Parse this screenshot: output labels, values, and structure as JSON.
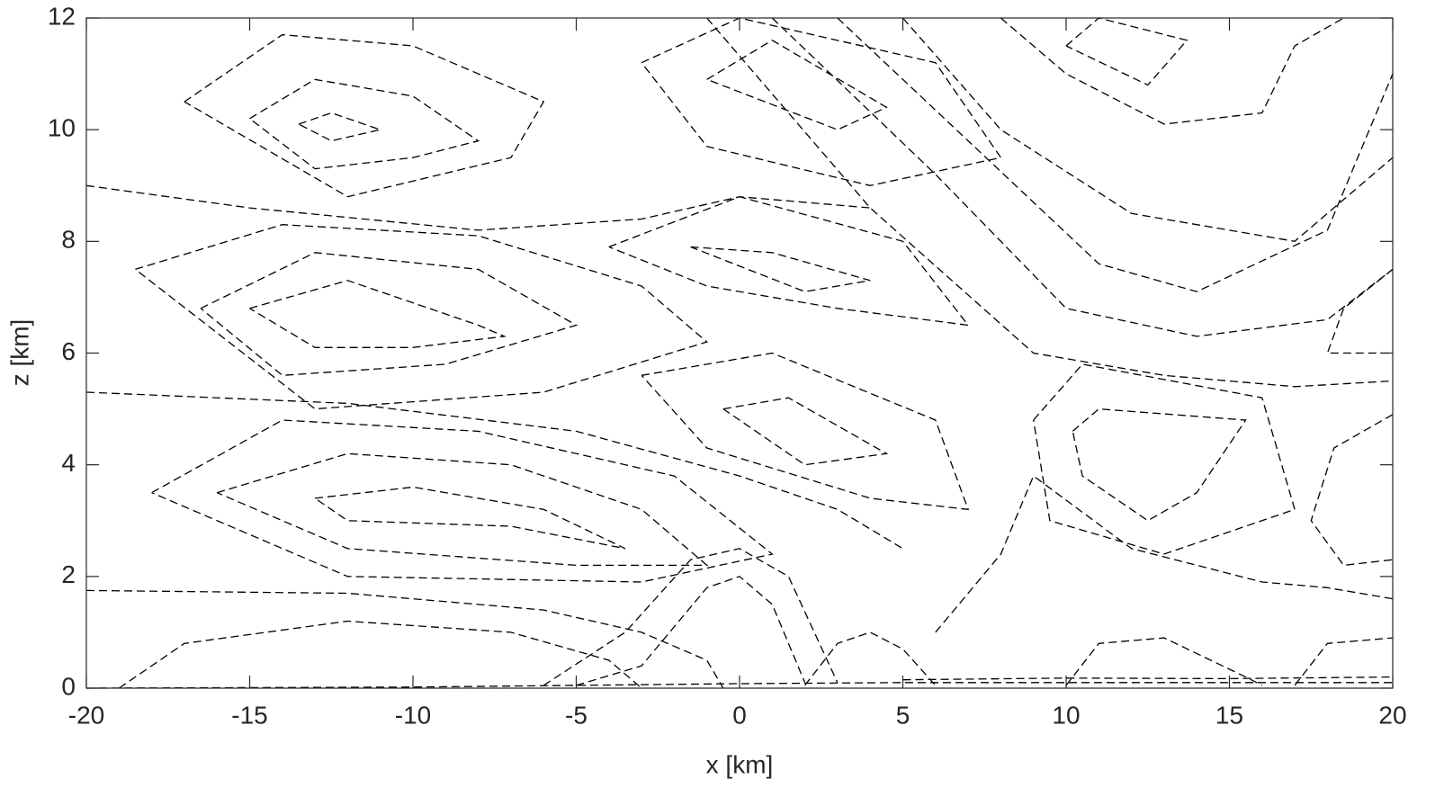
{
  "chart_data": {
    "type": "contour",
    "xlabel": "x [km]",
    "ylabel": "z [km]",
    "xlim": [
      -20,
      20
    ],
    "ylim": [
      0,
      12
    ],
    "xticks": [
      -20,
      -15,
      -10,
      -5,
      0,
      5,
      10,
      15,
      20
    ],
    "yticks": [
      0,
      2,
      4,
      6,
      8,
      10,
      12
    ],
    "line_style": "dashed",
    "color": "#000000",
    "series": [
      {
        "x": [
          -13.5,
          -12.5,
          -11,
          -12.5,
          -13.5
        ],
        "values": [
          10.1,
          10.3,
          10,
          9.8,
          10.1
        ]
      },
      {
        "x": [
          -15,
          -13,
          -10,
          -8,
          -10,
          -13,
          -15
        ],
        "values": [
          10.2,
          10.9,
          10.6,
          9.8,
          9.5,
          9.3,
          10.2
        ]
      },
      {
        "x": [
          -17,
          -14,
          -10,
          -6,
          -7,
          -12,
          -17
        ],
        "values": [
          10.5,
          11.7,
          11.5,
          10.5,
          9.5,
          8.8,
          10.5
        ]
      },
      {
        "x": [
          -15,
          -12,
          -8,
          -7.2,
          -10,
          -13,
          -15
        ],
        "values": [
          6.8,
          7.3,
          6.5,
          6.3,
          6.1,
          6.1,
          6.8
        ]
      },
      {
        "x": [
          -16.5,
          -13,
          -8,
          -5,
          -9,
          -14,
          -16.5
        ],
        "values": [
          6.8,
          7.8,
          7.5,
          6.5,
          5.8,
          5.6,
          6.8
        ]
      },
      {
        "x": [
          -18.5,
          -14,
          -8,
          -3,
          -1,
          -6,
          -13,
          -18.5
        ],
        "values": [
          7.5,
          8.3,
          8.1,
          7.2,
          6.2,
          5.3,
          5.0,
          7.5
        ]
      },
      {
        "x": [
          -13,
          -10,
          -6,
          -3.5,
          -7,
          -12,
          -13
        ],
        "values": [
          3.4,
          3.6,
          3.2,
          2.5,
          2.9,
          3.0,
          3.4
        ]
      },
      {
        "x": [
          -16,
          -12,
          -7,
          -3,
          -1,
          -5,
          -12,
          -16
        ],
        "values": [
          3.5,
          4.2,
          4.0,
          3.2,
          2.2,
          2.2,
          2.5,
          3.5
        ]
      },
      {
        "x": [
          -18,
          -14,
          -8,
          -2,
          1,
          -3,
          -12,
          -18
        ],
        "values": [
          3.5,
          4.8,
          4.6,
          3.8,
          2.4,
          1.9,
          2.0,
          3.5
        ]
      },
      {
        "x": [
          -20,
          -15,
          -8,
          -3,
          0,
          4
        ],
        "values": [
          9,
          8.6,
          8.2,
          8.4,
          8.8,
          8.6
        ]
      },
      {
        "x": [
          -20,
          -12,
          -5,
          0,
          3,
          5
        ],
        "values": [
          5.3,
          5.1,
          4.6,
          3.8,
          3.2,
          2.5
        ]
      },
      {
        "x": [
          -20,
          -12,
          -6,
          -3,
          -1,
          -0.5
        ],
        "values": [
          1.75,
          1.7,
          1.4,
          1.0,
          0.5,
          0
        ]
      },
      {
        "x": [
          -19,
          -17,
          -12,
          -7,
          -4,
          -3
        ],
        "values": [
          0,
          0.8,
          1.2,
          1.0,
          0.5,
          0
        ]
      },
      {
        "x": [
          -1.5,
          1,
          4,
          2,
          -1.5
        ],
        "values": [
          7.9,
          7.8,
          7.3,
          7.1,
          7.9
        ]
      },
      {
        "x": [
          -4,
          0,
          5,
          7,
          3,
          -1,
          -4
        ],
        "values": [
          7.9,
          8.8,
          8.0,
          6.5,
          6.8,
          7.2,
          7.9
        ]
      },
      {
        "x": [
          -0.5,
          1.5,
          4.5,
          2,
          -0.5
        ],
        "values": [
          5.0,
          5.2,
          4.2,
          4.0,
          5.0
        ]
      },
      {
        "x": [
          -3,
          1,
          6,
          7,
          4,
          -1,
          -3
        ],
        "values": [
          5.6,
          6.0,
          4.8,
          3.2,
          3.4,
          4.3,
          5.6
        ]
      },
      {
        "x": [
          -1,
          1,
          4.5,
          3,
          -1
        ],
        "values": [
          10.9,
          11.6,
          10.4,
          10.0,
          10.9
        ]
      },
      {
        "x": [
          -3,
          0,
          6,
          8,
          4,
          -1,
          -3
        ],
        "values": [
          11.2,
          12,
          11.2,
          9.5,
          9.0,
          9.7,
          11.2
        ]
      },
      {
        "x": [
          10,
          11,
          13.7,
          12.5,
          10
        ],
        "values": [
          11.5,
          12,
          11.6,
          10.8,
          11.5
        ]
      },
      {
        "x": [
          8,
          10,
          13,
          16,
          17,
          18.5
        ],
        "values": [
          12,
          11,
          10.1,
          10.3,
          11.5,
          12
        ]
      },
      {
        "x": [
          10.2,
          11,
          15.5,
          14,
          12.5,
          10.5,
          10.2
        ],
        "values": [
          4.6,
          5,
          4.8,
          3.5,
          3,
          3.8,
          4.6
        ]
      },
      {
        "x": [
          9,
          10.5,
          16,
          17,
          13,
          9.5,
          9
        ],
        "values": [
          4.8,
          5.8,
          5.2,
          3.2,
          2.4,
          3.0,
          4.8
        ]
      },
      {
        "x": [
          20,
          18.5,
          18,
          20
        ],
        "values": [
          7.5,
          6.8,
          6.0,
          6.0
        ]
      },
      {
        "x": [
          20,
          18.2,
          17.5,
          18.5,
          20
        ],
        "values": [
          4.9,
          4.3,
          3.0,
          2.2,
          2.3
        ]
      },
      {
        "x": [
          5,
          8,
          12,
          17,
          20
        ],
        "values": [
          12,
          10,
          8.5,
          8,
          9.5
        ]
      },
      {
        "x": [
          3,
          7,
          11,
          14,
          18,
          20
        ],
        "values": [
          12,
          9.8,
          7.6,
          7.1,
          8.2,
          11
        ]
      },
      {
        "x": [
          1,
          6,
          10,
          14,
          18,
          20
        ],
        "values": [
          12,
          9.2,
          6.8,
          6.3,
          6.6,
          7.5
        ]
      },
      {
        "x": [
          -1,
          4,
          9,
          13,
          17,
          20
        ],
        "values": [
          12,
          8.6,
          6.0,
          5.6,
          5.4,
          5.5
        ]
      },
      {
        "x": [
          6,
          8,
          9,
          12,
          16,
          18,
          20
        ],
        "values": [
          1.0,
          2.4,
          3.8,
          2.5,
          1.9,
          1.8,
          1.6
        ]
      },
      {
        "x": [
          10,
          11,
          13,
          15.5,
          16
        ],
        "values": [
          0.05,
          0.8,
          0.9,
          0.2,
          0.05
        ]
      },
      {
        "x": [
          17,
          18,
          20
        ],
        "values": [
          0.05,
          0.8,
          0.9
        ]
      },
      {
        "x": [
          -5,
          -3,
          -1,
          0,
          1,
          2
        ],
        "values": [
          0.05,
          0.4,
          1.8,
          2.0,
          1.5,
          0.1
        ]
      },
      {
        "x": [
          -6,
          -3.5,
          -1.5,
          0,
          1.5,
          3
        ],
        "values": [
          0.05,
          1.0,
          2.3,
          2.5,
          2.0,
          0.1
        ]
      },
      {
        "x": [
          2,
          3,
          4,
          5,
          6
        ],
        "values": [
          0.05,
          0.8,
          1.0,
          0.7,
          0.05
        ]
      },
      {
        "x": [
          -20,
          -10,
          0,
          5,
          10,
          20
        ],
        "values": [
          0,
          0.02,
          0.08,
          0.1,
          0.1,
          0.1
        ]
      },
      {
        "x": [
          5,
          10,
          15,
          20
        ],
        "values": [
          0.15,
          0.18,
          0.17,
          0.2
        ]
      }
    ]
  }
}
